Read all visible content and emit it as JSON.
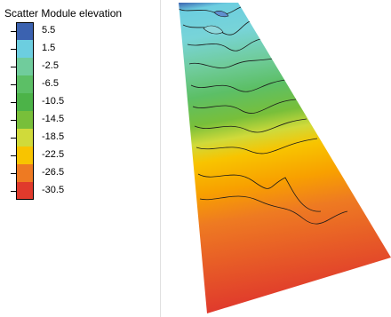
{
  "legend": {
    "title": "Scatter Module elevation",
    "items": [
      {
        "label": "5.5",
        "color": "#3b62b0"
      },
      {
        "label": "1.5",
        "color": "#6ccee0"
      },
      {
        "label": "-2.5",
        "color": "#70cc9c"
      },
      {
        "label": "-6.5",
        "color": "#5cbf66"
      },
      {
        "label": "-10.5",
        "color": "#4cb348"
      },
      {
        "label": "-14.5",
        "color": "#78bf3a"
      },
      {
        "label": "-18.5",
        "color": "#d0da3a"
      },
      {
        "label": "-22.5",
        "color": "#f8c400"
      },
      {
        "label": "-26.5",
        "color": "#ee7a22"
      },
      {
        "label": "-30.5",
        "color": "#e03a2c"
      }
    ]
  }
}
